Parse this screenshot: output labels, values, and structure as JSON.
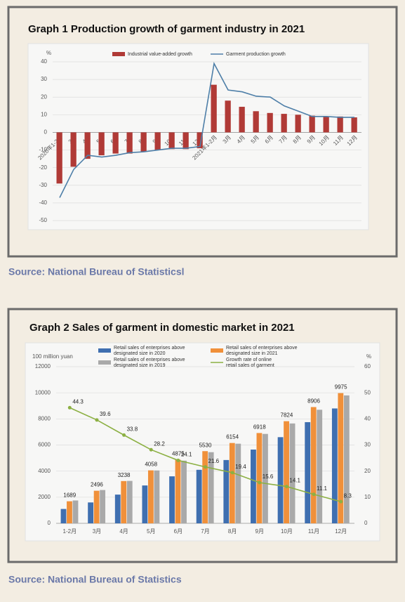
{
  "chart_data": [
    {
      "type": "bar",
      "title": "Graph 1    Production growth of garment industry in 2021",
      "source": "Source: National Bureau of Statisticsl",
      "y_unit": "%",
      "categories": [
        "2020年1-2月",
        "3月",
        "4月",
        "5月",
        "6月",
        "7月",
        "8月",
        "9月",
        "10月",
        "11月",
        "12月",
        "2021年1-2月",
        "3月",
        "4月",
        "5月",
        "6月",
        "7月",
        "8月",
        "9月",
        "10月",
        "11月",
        "12月"
      ],
      "series": [
        {
          "name": "Industrial value-added growth",
          "type": "bar",
          "color": "#b03a36",
          "values": [
            -29,
            -19.5,
            -15,
            -13,
            -12,
            -12,
            -11,
            -10,
            -9.5,
            -9.5,
            -9,
            27,
            18,
            14.5,
            12,
            11,
            10.5,
            10,
            9.5,
            9,
            9,
            8.5
          ]
        },
        {
          "name": "Garment production growth",
          "type": "line",
          "color": "#4e7fa8",
          "values": [
            -37,
            -21,
            -13,
            -14,
            -13,
            -11.5,
            -11,
            -10,
            -9,
            -9,
            -8,
            39,
            24,
            23,
            20.5,
            20,
            15,
            12,
            9,
            9,
            8.5,
            8.5
          ]
        }
      ],
      "ylim": [
        -50,
        40
      ],
      "yticks": [
        -50,
        -40,
        -30,
        -20,
        -10,
        0,
        10,
        20,
        30,
        40
      ],
      "grid": true
    },
    {
      "type": "bar",
      "title": "Graph 2    Sales of garment in domestic market in 2021",
      "source": "Source: National Bureau of Statistics",
      "y_unit": "100 million yuan",
      "y2_unit": "%",
      "categories": [
        "1-2月",
        "3月",
        "4月",
        "5月",
        "6月",
        "7月",
        "8月",
        "9月",
        "10月",
        "11月",
        "12月"
      ],
      "series": [
        {
          "name": "Retail sales of enterprises above designated size in 2020",
          "type": "bar",
          "color": "#3f6fb0",
          "values": [
            1100,
            1600,
            2200,
            2900,
            3600,
            4100,
            4850,
            5650,
            6600,
            7750,
            8800
          ]
        },
        {
          "name": "Retail sales of enterprises above designated size in 2021",
          "type": "bar",
          "color": "#f0903a",
          "show_labels": true,
          "values": [
            1689,
            2496,
            3238,
            4058,
            4875,
            5530,
            6154,
            6918,
            7824,
            8906,
            9975
          ]
        },
        {
          "name": "Retail sales of enterprises above designated size in 2019",
          "type": "bar",
          "color": "#a9a9a9",
          "values": [
            1750,
            2550,
            3250,
            4050,
            4800,
            5450,
            6100,
            6850,
            7650,
            8700,
            9800
          ]
        },
        {
          "name": "Growth rate of online retail sales of garment",
          "type": "line",
          "axis": "y2",
          "color": "#8cb043",
          "show_labels": true,
          "values": [
            44.3,
            39.6,
            33.8,
            28.2,
            24.1,
            21.6,
            19.4,
            15.6,
            14.1,
            11.1,
            8.3
          ]
        }
      ],
      "ylim": [
        0,
        12000
      ],
      "yticks": [
        0,
        2000,
        4000,
        6000,
        8000,
        10000,
        12000
      ],
      "y2lim": [
        0,
        60
      ],
      "y2ticks": [
        0,
        10,
        20,
        30,
        40,
        50,
        60
      ],
      "grid": true
    }
  ]
}
